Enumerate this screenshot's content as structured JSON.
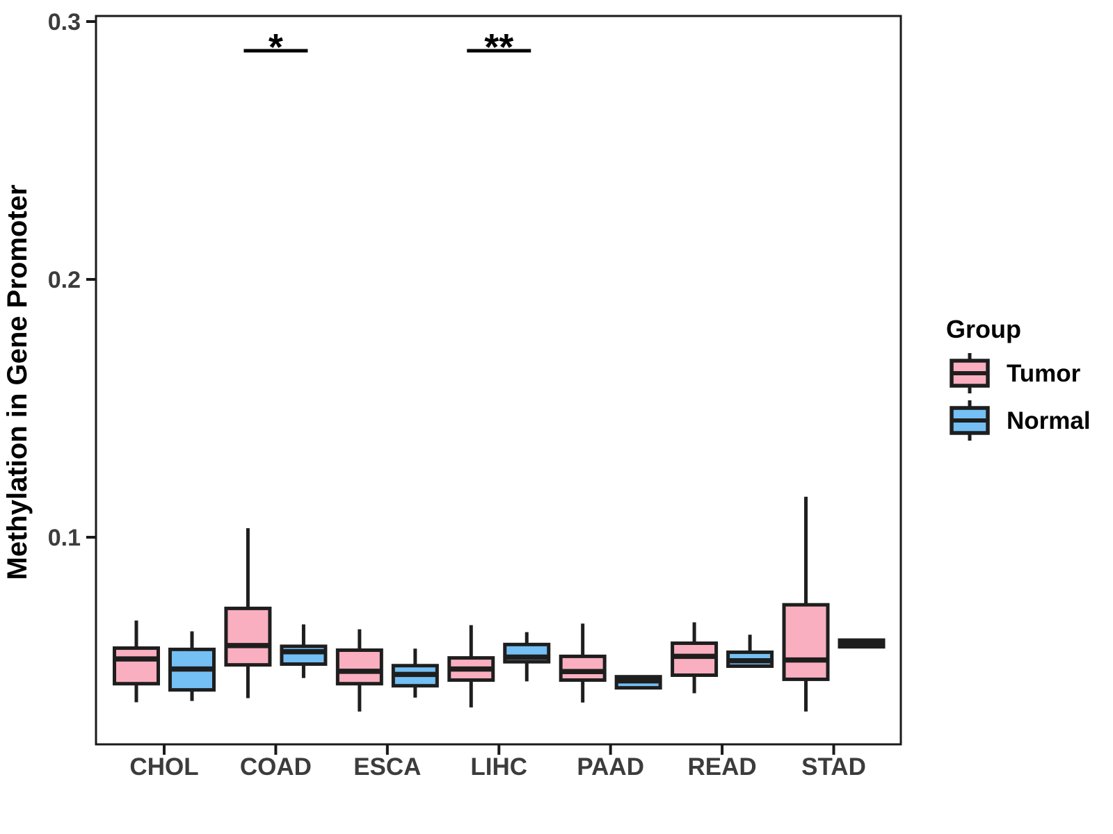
{
  "figure": {
    "background": "#FFFFFF"
  },
  "chart_data": {
    "type": "boxplot",
    "title": "",
    "xlabel": "",
    "ylabel": "Methylation in Gene Promoter",
    "ylim": [
      0.019,
      0.302
    ],
    "yticks": [
      0.1,
      0.2,
      0.3
    ],
    "ytick_labels": [
      "0.1",
      "0.2",
      "0.3"
    ],
    "grid": false,
    "categories": [
      "CHOL",
      "COAD",
      "ESCA",
      "LIHC",
      "PAAD",
      "READ",
      "STAD"
    ],
    "groups": [
      {
        "name": "Tumor",
        "color": "#F9AFBF"
      },
      {
        "name": "Normal",
        "color": "#74BFF4"
      }
    ],
    "series": [
      {
        "group": "Tumor",
        "boxes": [
          {
            "category": "CHOL",
            "whisker_low": 0.036,
            "q1": 0.0432,
            "median": 0.0528,
            "q3": 0.057,
            "whisker_high": 0.0677
          },
          {
            "category": "COAD",
            "whisker_low": 0.0376,
            "q1": 0.0505,
            "median": 0.058,
            "q3": 0.0724,
            "whisker_high": 0.1035
          },
          {
            "category": "ESCA",
            "whisker_low": 0.0324,
            "q1": 0.0432,
            "median": 0.048,
            "q3": 0.0562,
            "whisker_high": 0.0643
          },
          {
            "category": "LIHC",
            "whisker_low": 0.034,
            "q1": 0.0446,
            "median": 0.0489,
            "q3": 0.0532,
            "whisker_high": 0.0659
          },
          {
            "category": "PAAD",
            "whisker_low": 0.0359,
            "q1": 0.0446,
            "median": 0.0479,
            "q3": 0.0538,
            "whisker_high": 0.0665
          },
          {
            "category": "READ",
            "whisker_low": 0.0395,
            "q1": 0.0465,
            "median": 0.0538,
            "q3": 0.0589,
            "whisker_high": 0.067
          },
          {
            "category": "STAD",
            "whisker_low": 0.0324,
            "q1": 0.0449,
            "median": 0.0524,
            "q3": 0.0738,
            "whisker_high": 0.1157
          }
        ]
      },
      {
        "group": "Normal",
        "boxes": [
          {
            "category": "CHOL",
            "whisker_low": 0.0365,
            "q1": 0.0408,
            "median": 0.0489,
            "q3": 0.0565,
            "whisker_high": 0.0635
          },
          {
            "category": "COAD",
            "whisker_low": 0.0454,
            "q1": 0.0508,
            "median": 0.0556,
            "q3": 0.0577,
            "whisker_high": 0.0662
          },
          {
            "category": "ESCA",
            "whisker_low": 0.0378,
            "q1": 0.0424,
            "median": 0.0468,
            "q3": 0.0502,
            "whisker_high": 0.0568
          },
          {
            "category": "LIHC",
            "whisker_low": 0.0441,
            "q1": 0.0517,
            "median": 0.0535,
            "q3": 0.0584,
            "whisker_high": 0.0632
          },
          {
            "category": "PAAD",
            "whisker_low": 0.0416,
            "q1": 0.0416,
            "median": 0.0443,
            "q3": 0.0459,
            "whisker_high": 0.0459
          },
          {
            "category": "READ",
            "whisker_low": 0.05,
            "q1": 0.05,
            "median": 0.0521,
            "q3": 0.0554,
            "whisker_high": 0.0622
          },
          {
            "category": "STAD",
            "whisker_low": 0.0575,
            "q1": 0.0575,
            "median": 0.0588,
            "q3": 0.0601,
            "whisker_high": 0.0601
          }
        ]
      }
    ],
    "significance": [
      {
        "category": "COAD",
        "label": "*"
      },
      {
        "category": "LIHC",
        "label": "**"
      }
    ],
    "legend": {
      "title": "Group",
      "position": "right",
      "entries": [
        "Tumor",
        "Normal"
      ]
    },
    "style": {
      "box_border": "#1E1E1E",
      "axis_line": "#1A1A1A",
      "axis_text_color": "#3C3C3C",
      "title_text_color": "#000000",
      "sig_color": "#000000"
    }
  }
}
